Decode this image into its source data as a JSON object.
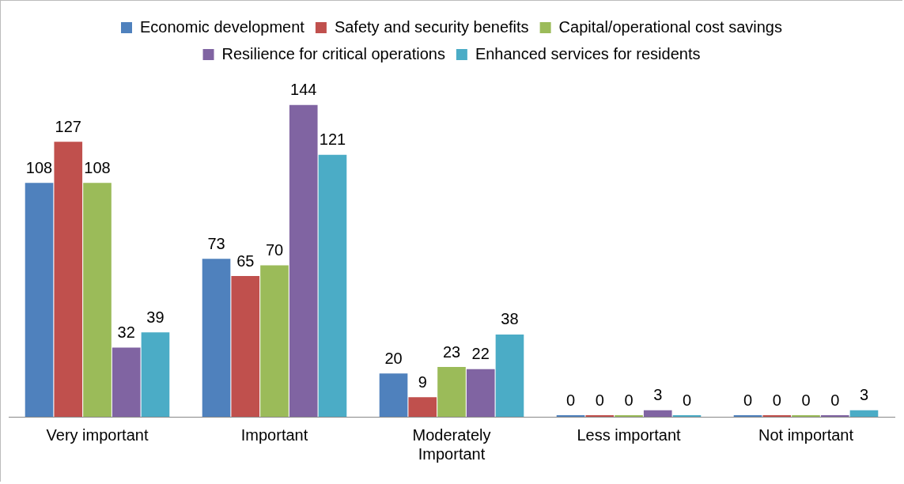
{
  "chart_data": {
    "type": "bar",
    "categories": [
      "Very important",
      "Important",
      "Moderately Important",
      "Less important",
      "Not important"
    ],
    "series": [
      {
        "name": "Economic development",
        "color": "#4f81bd",
        "values": [
          108,
          73,
          20,
          0,
          0
        ]
      },
      {
        "name": "Safety and security benefits",
        "color": "#c0504d",
        "values": [
          127,
          65,
          9,
          0,
          0
        ]
      },
      {
        "name": "Capital/operational cost savings",
        "color": "#9bbb59",
        "values": [
          108,
          70,
          23,
          0,
          0
        ]
      },
      {
        "name": "Resilience for critical operations",
        "color": "#8064a2",
        "values": [
          32,
          144,
          22,
          3,
          0
        ]
      },
      {
        "name": "Enhanced services for residents",
        "color": "#4bacc6",
        "values": [
          39,
          121,
          38,
          0,
          3
        ]
      }
    ],
    "data_labels": true,
    "legend": "top",
    "grid": false,
    "tick_labels": "x"
  }
}
